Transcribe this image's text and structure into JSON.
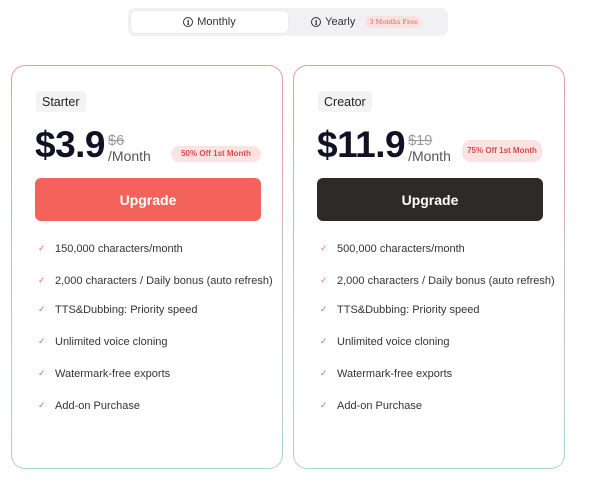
{
  "billing_toggle": {
    "monthly_label": "Monthly",
    "yearly_label": "Yearly",
    "yearly_badge": "3 Months Free",
    "selected": "Monthly"
  },
  "plans": [
    {
      "name": "Starter",
      "price": "$3.9",
      "old_price": "$6",
      "period": "/Month",
      "discount_badge": "50% Off 1st Month",
      "cta_label": "Upgrade",
      "cta_color": "#f4635b",
      "features": [
        "150,000 characters/month",
        "2,000 characters / Daily bonus (auto refresh)",
        "TTS&Dubbing: Priority speed",
        "Unlimited voice cloning",
        "Watermark-free exports",
        "Add-on Purchase"
      ]
    },
    {
      "name": "Creator",
      "price": "$11.9",
      "old_price": "$19",
      "period": "/Month",
      "discount_badge": "75% Off 1st Month",
      "cta_label": "Upgrade",
      "cta_color": "#2e2a29",
      "features": [
        "500,000 characters/month",
        "2,000 characters / Daily bonus (auto refresh)",
        "TTS&Dubbing: Priority speed",
        "Unlimited voice cloning",
        "Watermark-free exports",
        "Add-on Purchase"
      ]
    }
  ],
  "icons": {
    "info": "info-icon",
    "feature_check": "check-icon"
  },
  "colors": {
    "accent": "#f4635b",
    "dark_button": "#2e2a29",
    "badge_bg": "#fde2e2",
    "badge_text": "#d94c4c"
  }
}
